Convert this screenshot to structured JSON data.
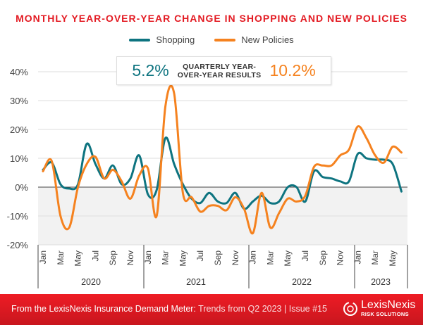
{
  "chart_data": {
    "type": "line",
    "title": "MONTHLY YEAR-OVER-YEAR CHANGE IN SHOPPING AND NEW POLICIES",
    "ylim": [
      -20,
      40
    ],
    "yticks": [
      "40%",
      "30%",
      "20%",
      "10%",
      "0%",
      "-10%",
      "-20%"
    ],
    "ytick_values": [
      40,
      30,
      20,
      10,
      0,
      -10,
      -20
    ],
    "grid": true,
    "legend_position": "top-center",
    "month_labels": [
      "Jan",
      "Mar",
      "May",
      "Jul",
      "Sep",
      "Nov",
      "Jan",
      "Mar",
      "May",
      "Jul",
      "Sep",
      "Nov",
      "Jan",
      "Mar",
      "May",
      "Jul",
      "Sep",
      "Nov",
      "Jan",
      "Mar",
      "May"
    ],
    "years": [
      "2020",
      "2021",
      "2022",
      "2023"
    ],
    "x_start": "Jan 2020",
    "x_end": "Jun 2023",
    "series": [
      {
        "name": "Shopping",
        "color": "#0e7480",
        "values": [
          6,
          8.5,
          1,
          -0.5,
          1,
          15,
          8,
          3,
          7.5,
          1,
          3,
          11,
          -2.5,
          -1,
          17,
          8,
          1,
          -4,
          -5.5,
          -2,
          -5,
          -5.5,
          -2,
          -7.5,
          -5,
          -3,
          -5.5,
          -5,
          0,
          0,
          -5,
          5.5,
          3.5,
          3,
          2,
          2,
          11.5,
          10,
          9.5,
          9.5,
          8,
          -1.5
        ]
      },
      {
        "name": "New Policies",
        "color": "#f5821f",
        "values": [
          5.5,
          9,
          -10,
          -14,
          0,
          8,
          10.5,
          3,
          6,
          2,
          -4,
          4,
          6.5,
          -10,
          28,
          32.5,
          -2,
          -3.5,
          -8.5,
          -6.5,
          -6.5,
          -8,
          -3.5,
          -7.5,
          -16,
          -2,
          -14,
          -9,
          -4,
          -5,
          -3,
          7,
          7.5,
          7.5,
          11,
          13,
          21,
          17,
          11,
          8.5,
          14,
          12
        ]
      }
    ]
  },
  "quarterly": {
    "shopping": "5.2%",
    "label_line1": "QUARTERLY YEAR-",
    "label_line2": "OVER-YEAR RESULTS",
    "new_policies": "10.2%"
  },
  "footer": {
    "bold": "From the LexisNexis Insurance Demand Meter:",
    "light": "Trends from Q2 2023",
    "sep": "|",
    "issue": "Issue #15",
    "logo_name": "LexisNexis",
    "logo_sub": "RISK SOLUTIONS"
  },
  "colors": {
    "brand_red": "#e31b23",
    "shopping": "#0e7480",
    "new_policies": "#f5821f"
  }
}
